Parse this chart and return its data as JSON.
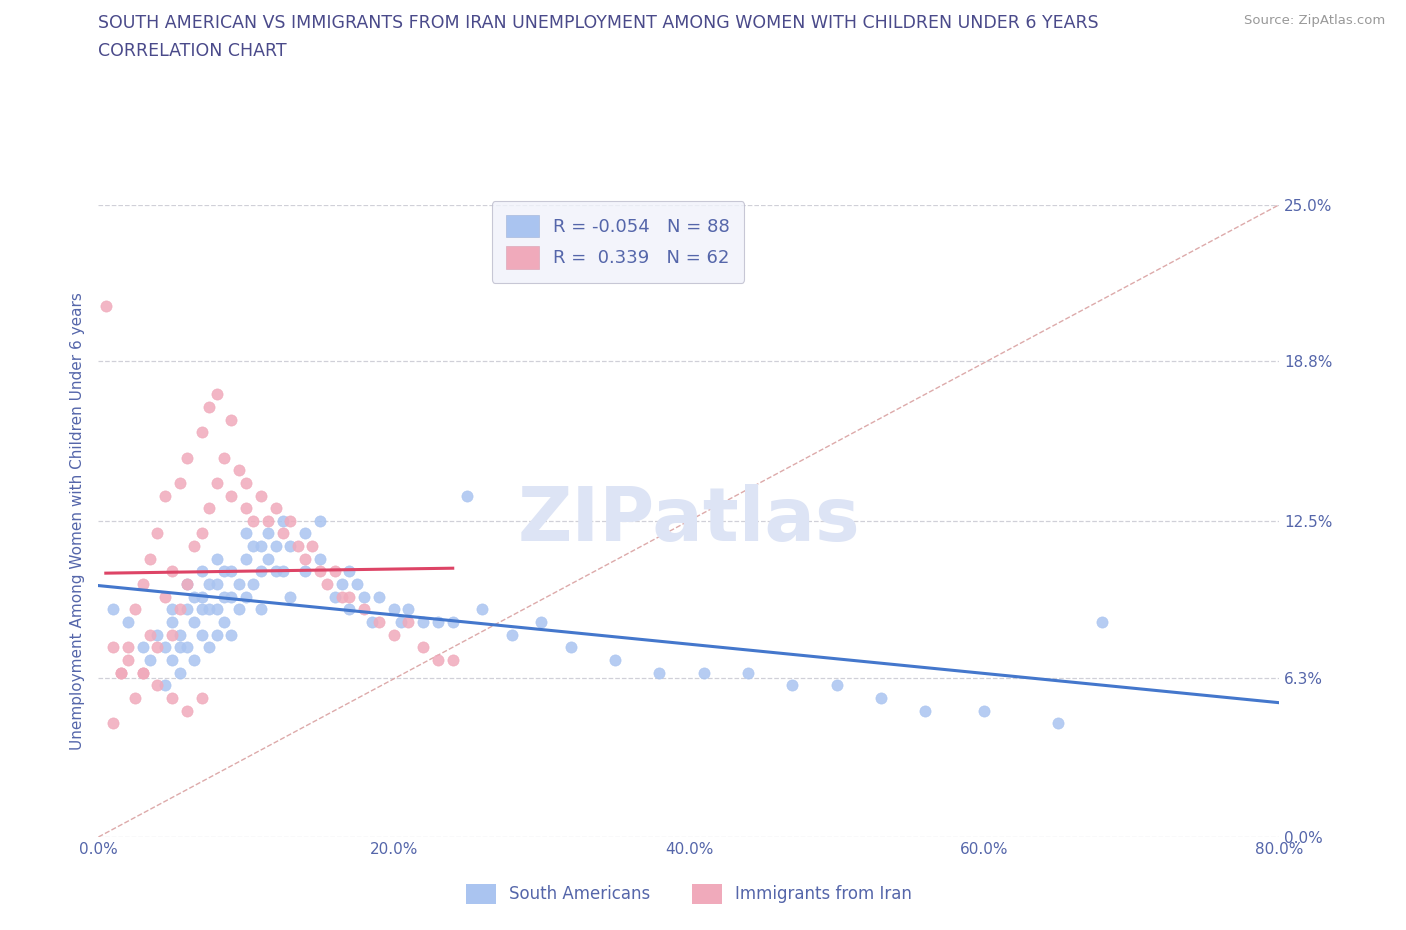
{
  "title_line1": "SOUTH AMERICAN VS IMMIGRANTS FROM IRAN UNEMPLOYMENT AMONG WOMEN WITH CHILDREN UNDER 6 YEARS",
  "title_line2": "CORRELATION CHART",
  "source_text": "Source: ZipAtlas.com",
  "ylabel": "Unemployment Among Women with Children Under 6 years",
  "xmin": 0.0,
  "xmax": 80.0,
  "ymin": 0.0,
  "ymax": 25.0,
  "yticks": [
    0.0,
    6.3,
    12.5,
    18.8,
    25.0
  ],
  "ytick_labels": [
    "0.0%",
    "6.3%",
    "12.5%",
    "18.8%",
    "25.0%"
  ],
  "xticks": [
    0.0,
    20.0,
    40.0,
    60.0,
    80.0
  ],
  "xtick_labels": [
    "0.0%",
    "20.0%",
    "40.0%",
    "60.0%",
    "80.0%"
  ],
  "background_color": "#ffffff",
  "grid_color": "#d0d0d8",
  "title_color": "#4a4a8a",
  "axis_color": "#5566aa",
  "watermark_color": "#dde4f5",
  "south_american_color": "#aac4f0",
  "iran_color": "#f0aabb",
  "line_south_american_color": "#4477cc",
  "line_iran_color": "#dd4466",
  "legend_R_south": "-0.054",
  "legend_N_south": "88",
  "legend_R_iran": "0.339",
  "legend_N_iran": "62",
  "diag_line_color": "#ddaaaa",
  "south_american_x": [
    1.0,
    2.0,
    3.0,
    3.5,
    4.0,
    4.5,
    4.5,
    5.0,
    5.0,
    5.0,
    5.5,
    5.5,
    5.5,
    6.0,
    6.0,
    6.0,
    6.5,
    6.5,
    6.5,
    7.0,
    7.0,
    7.0,
    7.0,
    7.5,
    7.5,
    7.5,
    8.0,
    8.0,
    8.0,
    8.0,
    8.5,
    8.5,
    8.5,
    9.0,
    9.0,
    9.0,
    9.5,
    9.5,
    10.0,
    10.0,
    10.0,
    10.5,
    10.5,
    11.0,
    11.0,
    11.0,
    11.5,
    11.5,
    12.0,
    12.0,
    12.5,
    12.5,
    13.0,
    13.0,
    14.0,
    14.0,
    15.0,
    15.0,
    16.0,
    16.5,
    17.0,
    17.0,
    17.5,
    18.0,
    18.5,
    19.0,
    20.0,
    20.5,
    21.0,
    22.0,
    23.0,
    24.0,
    25.0,
    26.0,
    28.0,
    30.0,
    32.0,
    35.0,
    38.0,
    41.0,
    44.0,
    47.0,
    50.0,
    53.0,
    56.0,
    60.0,
    65.0,
    68.0
  ],
  "south_american_y": [
    9.0,
    8.5,
    7.5,
    7.0,
    8.0,
    7.5,
    6.0,
    9.0,
    8.5,
    7.0,
    8.0,
    7.5,
    6.5,
    10.0,
    9.0,
    7.5,
    9.5,
    8.5,
    7.0,
    10.5,
    9.5,
    9.0,
    8.0,
    10.0,
    9.0,
    7.5,
    11.0,
    10.0,
    9.0,
    8.0,
    10.5,
    9.5,
    8.5,
    10.5,
    9.5,
    8.0,
    10.0,
    9.0,
    12.0,
    11.0,
    9.5,
    11.5,
    10.0,
    11.5,
    10.5,
    9.0,
    12.0,
    11.0,
    11.5,
    10.5,
    12.5,
    10.5,
    11.5,
    9.5,
    12.0,
    10.5,
    12.5,
    11.0,
    9.5,
    10.0,
    10.5,
    9.0,
    10.0,
    9.5,
    8.5,
    9.5,
    9.0,
    8.5,
    9.0,
    8.5,
    8.5,
    8.5,
    13.5,
    9.0,
    8.0,
    8.5,
    7.5,
    7.0,
    6.5,
    6.5,
    6.5,
    6.0,
    6.0,
    5.5,
    5.0,
    5.0,
    4.5,
    8.5
  ],
  "iran_x": [
    0.5,
    1.0,
    1.5,
    2.0,
    2.5,
    2.5,
    3.0,
    3.0,
    3.5,
    3.5,
    4.0,
    4.0,
    4.5,
    4.5,
    5.0,
    5.0,
    5.5,
    5.5,
    6.0,
    6.0,
    6.5,
    7.0,
    7.0,
    7.5,
    7.5,
    8.0,
    8.0,
    8.5,
    9.0,
    9.0,
    9.5,
    10.0,
    10.0,
    10.5,
    11.0,
    11.5,
    12.0,
    12.5,
    13.0,
    13.5,
    14.0,
    14.5,
    15.0,
    15.5,
    16.0,
    16.5,
    17.0,
    18.0,
    19.0,
    20.0,
    21.0,
    22.0,
    23.0,
    24.0,
    1.0,
    1.5,
    2.0,
    3.0,
    4.0,
    5.0,
    6.0,
    7.0
  ],
  "iran_y": [
    21.0,
    4.5,
    6.5,
    7.5,
    5.5,
    9.0,
    6.5,
    10.0,
    8.0,
    11.0,
    7.5,
    12.0,
    9.5,
    13.5,
    8.0,
    10.5,
    9.0,
    14.0,
    10.0,
    15.0,
    11.5,
    12.0,
    16.0,
    13.0,
    17.0,
    14.0,
    17.5,
    15.0,
    13.5,
    16.5,
    14.5,
    14.0,
    13.0,
    12.5,
    13.5,
    12.5,
    13.0,
    12.0,
    12.5,
    11.5,
    11.0,
    11.5,
    10.5,
    10.0,
    10.5,
    9.5,
    9.5,
    9.0,
    8.5,
    8.0,
    8.5,
    7.5,
    7.0,
    7.0,
    7.5,
    6.5,
    7.0,
    6.5,
    6.0,
    5.5,
    5.0,
    5.5
  ]
}
